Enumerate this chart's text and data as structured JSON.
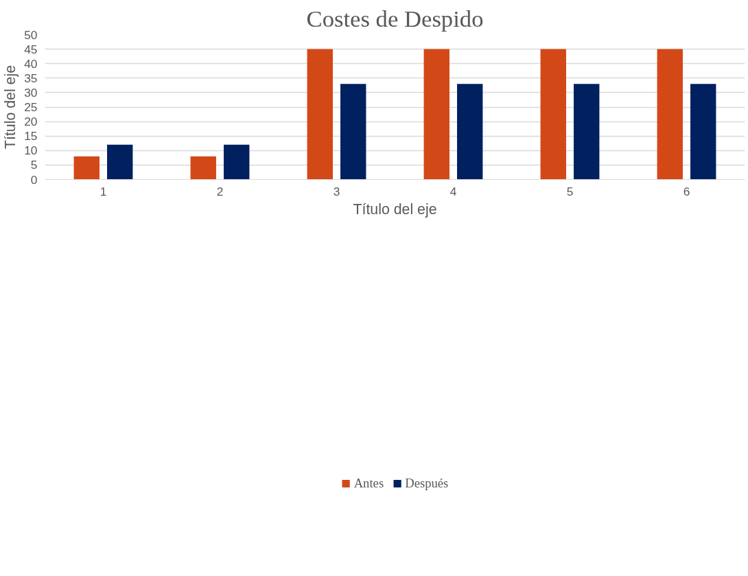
{
  "chart_data": {
    "type": "bar",
    "title": "Costes de Despido",
    "xlabel": "Título del eje",
    "ylabel": "Título del eje",
    "categories": [
      "1",
      "2",
      "3",
      "4",
      "5",
      "6"
    ],
    "series": [
      {
        "name": "Antes",
        "color": "#d34817",
        "values": [
          8,
          8,
          45,
          45,
          45,
          45
        ]
      },
      {
        "name": "Después",
        "color": "#002060",
        "values": [
          12,
          12,
          33,
          33,
          33,
          33
        ]
      }
    ],
    "ylim": [
      0,
      50
    ],
    "yticks": [
      0,
      5,
      10,
      15,
      20,
      25,
      30,
      35,
      40,
      45,
      50
    ],
    "grid": "y",
    "legend": "bottom"
  }
}
